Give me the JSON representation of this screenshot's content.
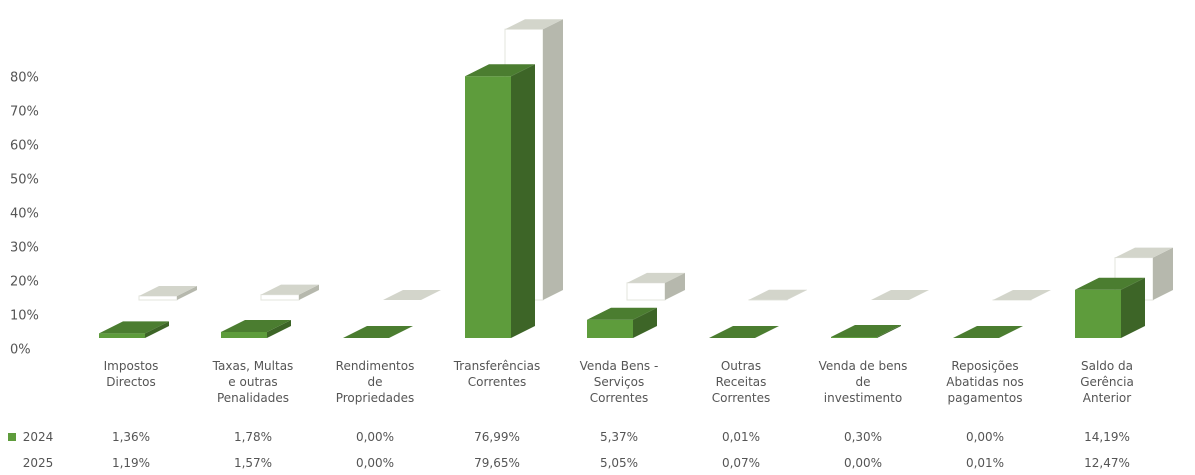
{
  "chart_data": {
    "type": "bar3d",
    "categories": [
      "Impostos Directos",
      "Taxas, Multas e outras Penalidades",
      "Rendimentos de Propriedades",
      "Transferências Correntes",
      "Venda Bens - Serviços Correntes",
      "Outras Receitas Correntes",
      "Venda de bens de investimento",
      "Reposições Abatidas nos pagamentos",
      "Saldo da Gerência Anterior"
    ],
    "series": [
      {
        "name": "2024",
        "color": "#5e9c3c",
        "values": [
          1.36,
          1.78,
          0.0,
          76.99,
          5.37,
          0.01,
          0.3,
          0.0,
          14.19
        ],
        "value_labels": [
          "1,36%",
          "1,78%",
          "0,00%",
          "76,99%",
          "5,37%",
          "0,01%",
          "0,30%",
          "0,00%",
          "14,19%"
        ]
      },
      {
        "name": "2025",
        "color": "#ffffff",
        "values": [
          1.19,
          1.57,
          0.0,
          79.65,
          5.05,
          0.07,
          0.0,
          0.01,
          12.47
        ],
        "value_labels": [
          "1,19%",
          "1,57%",
          "0,00%",
          "79,65%",
          "5,05%",
          "0,07%",
          "0,00%",
          "0,01%",
          "12,47%"
        ]
      }
    ],
    "ylim": [
      0,
      80
    ],
    "yticks": [
      {
        "value": 0,
        "label": "0%"
      },
      {
        "value": 10,
        "label": "10%"
      },
      {
        "value": 20,
        "label": "20%"
      },
      {
        "value": 30,
        "label": "30%"
      },
      {
        "value": 40,
        "label": "40%"
      },
      {
        "value": 50,
        "label": "50%"
      },
      {
        "value": 60,
        "label": "60%"
      },
      {
        "value": 70,
        "label": "70%"
      },
      {
        "value": 80,
        "label": "80%"
      }
    ],
    "grid": false
  }
}
